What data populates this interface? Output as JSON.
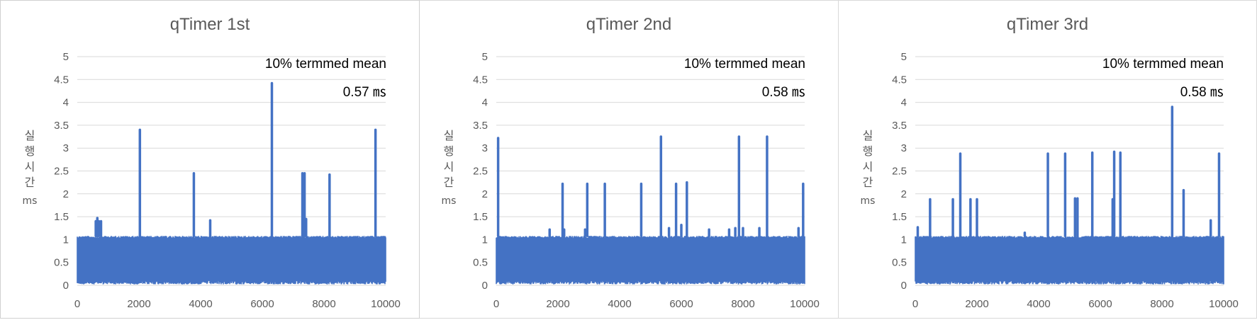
{
  "colors": {
    "series": "#4472C4",
    "grid": "#d9d9d9",
    "axis_text": "#595959"
  },
  "chart_data": [
    {
      "type": "line",
      "title": "qTimer 1st",
      "ylabel": "실행시간",
      "yunit": "ms",
      "xlim": [
        0,
        10000
      ],
      "ylim": [
        0,
        5
      ],
      "xticks": [
        0,
        2000,
        4000,
        6000,
        8000,
        10000
      ],
      "yticks": [
        0,
        0.5,
        1,
        1.5,
        2,
        2.5,
        3,
        3.5,
        4,
        4.5,
        5
      ],
      "grid": true,
      "annotation": {
        "line1": "10% termmed mean",
        "line2": "0.57 ㎳"
      },
      "band": {
        "low": 0.1,
        "high": 1.08
      },
      "spikes": [
        {
          "x": 600,
          "y": 1.4
        },
        {
          "x": 650,
          "y": 1.47
        },
        {
          "x": 700,
          "y": 1.4
        },
        {
          "x": 770,
          "y": 1.4
        },
        {
          "x": 2030,
          "y": 3.4
        },
        {
          "x": 3780,
          "y": 2.45
        },
        {
          "x": 4310,
          "y": 1.42
        },
        {
          "x": 6310,
          "y": 4.42
        },
        {
          "x": 7300,
          "y": 2.45
        },
        {
          "x": 7370,
          "y": 2.45
        },
        {
          "x": 7420,
          "y": 1.45
        },
        {
          "x": 8180,
          "y": 2.42
        },
        {
          "x": 9670,
          "y": 3.4
        }
      ]
    },
    {
      "type": "line",
      "title": "qTimer 2nd",
      "ylabel": "실행시간",
      "yunit": "ms",
      "xlim": [
        0,
        10000
      ],
      "ylim": [
        0,
        5
      ],
      "xticks": [
        0,
        2000,
        4000,
        6000,
        8000,
        10000
      ],
      "yticks": [
        0,
        0.5,
        1,
        1.5,
        2,
        2.5,
        3,
        3.5,
        4,
        4.5,
        5
      ],
      "grid": true,
      "annotation": {
        "line1": "10% termmed mean",
        "line2": "0.58 ㎳"
      },
      "band": {
        "low": 0.1,
        "high": 1.08
      },
      "spikes": [
        {
          "x": 60,
          "y": 3.22
        },
        {
          "x": 1730,
          "y": 1.22
        },
        {
          "x": 2150,
          "y": 2.22
        },
        {
          "x": 2200,
          "y": 1.22
        },
        {
          "x": 2880,
          "y": 1.22
        },
        {
          "x": 2950,
          "y": 2.22
        },
        {
          "x": 3520,
          "y": 2.22
        },
        {
          "x": 4700,
          "y": 2.22
        },
        {
          "x": 5340,
          "y": 3.25
        },
        {
          "x": 5600,
          "y": 1.25
        },
        {
          "x": 5830,
          "y": 2.22
        },
        {
          "x": 6000,
          "y": 1.32
        },
        {
          "x": 6180,
          "y": 2.25
        },
        {
          "x": 6900,
          "y": 1.22
        },
        {
          "x": 7550,
          "y": 1.22
        },
        {
          "x": 7750,
          "y": 1.25
        },
        {
          "x": 7870,
          "y": 3.25
        },
        {
          "x": 8000,
          "y": 1.25
        },
        {
          "x": 8530,
          "y": 1.25
        },
        {
          "x": 8780,
          "y": 3.25
        },
        {
          "x": 9800,
          "y": 1.25
        },
        {
          "x": 9950,
          "y": 2.22
        }
      ]
    },
    {
      "type": "line",
      "title": "qTimer 3rd",
      "ylabel": "실행시간",
      "yunit": "ms",
      "xlim": [
        0,
        10000
      ],
      "ylim": [
        0,
        5
      ],
      "xticks": [
        0,
        2000,
        4000,
        6000,
        8000,
        10000
      ],
      "yticks": [
        0,
        0.5,
        1,
        1.5,
        2,
        2.5,
        3,
        3.5,
        4,
        4.5,
        5
      ],
      "grid": true,
      "annotation": {
        "line1": "10% termmed mean",
        "line2": "0.58 ㎳"
      },
      "band": {
        "low": 0.1,
        "high": 1.08
      },
      "spikes": [
        {
          "x": 80,
          "y": 1.27
        },
        {
          "x": 480,
          "y": 1.88
        },
        {
          "x": 1220,
          "y": 1.88
        },
        {
          "x": 1460,
          "y": 2.88
        },
        {
          "x": 1790,
          "y": 1.88
        },
        {
          "x": 2000,
          "y": 1.88
        },
        {
          "x": 3550,
          "y": 1.15
        },
        {
          "x": 4300,
          "y": 2.88
        },
        {
          "x": 4860,
          "y": 2.88
        },
        {
          "x": 5180,
          "y": 1.9
        },
        {
          "x": 5260,
          "y": 1.9
        },
        {
          "x": 5740,
          "y": 2.9
        },
        {
          "x": 6400,
          "y": 1.88
        },
        {
          "x": 6450,
          "y": 2.92
        },
        {
          "x": 6650,
          "y": 2.9
        },
        {
          "x": 8330,
          "y": 3.9
        },
        {
          "x": 8700,
          "y": 2.08
        },
        {
          "x": 9580,
          "y": 1.42
        },
        {
          "x": 9850,
          "y": 2.88
        }
      ]
    }
  ]
}
